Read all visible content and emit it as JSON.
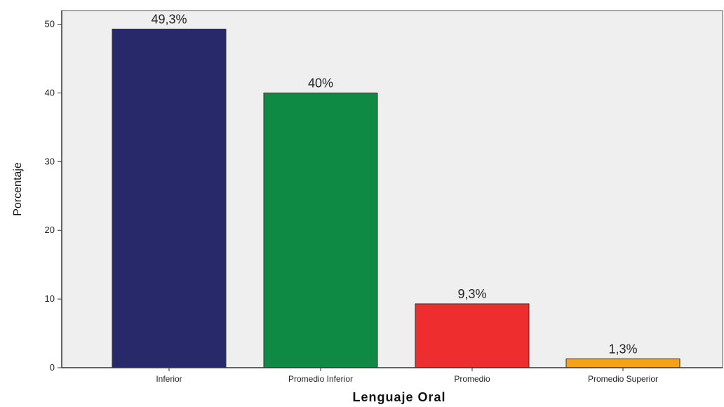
{
  "chart_data": {
    "type": "bar",
    "title": "",
    "xlabel": "Lenguaje Oral",
    "ylabel": "Porcentaje",
    "ylim": [
      0,
      52
    ],
    "yticks": [
      0,
      10,
      20,
      30,
      40,
      50
    ],
    "grid": false,
    "legend": "none",
    "categories": [
      "Inferior",
      "Promedio Inferior",
      "Promedio",
      "Promedio Superior"
    ],
    "values": [
      49.3,
      40,
      9.3,
      1.3
    ],
    "data_labels": [
      "49,3%",
      "40%",
      "9,3%",
      "1,3%"
    ],
    "colors": [
      "#27296b",
      "#0f8a45",
      "#ee2d2f",
      "#f5a21b"
    ],
    "background_color": "#efefef"
  }
}
